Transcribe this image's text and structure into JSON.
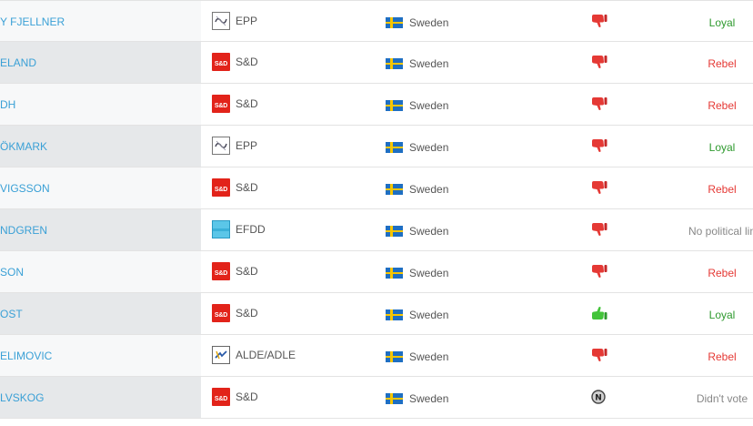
{
  "colors": {
    "link": "#3aa0d6",
    "loyal": "#2e9a2e",
    "rebel": "#e53935",
    "neutral": "#888888"
  },
  "rows": [
    {
      "name": "Y FJELLNER",
      "group": "EPP",
      "group_logo": "epp-logo",
      "country": "Sweden",
      "vote_icon": "thumbs-down-icon",
      "status": "Loyal",
      "status_kind": "loyal"
    },
    {
      "name": "ELAND",
      "group": "S&D",
      "group_logo": "sd-logo",
      "logo_text": "S&D",
      "country": "Sweden",
      "vote_icon": "thumbs-down-icon",
      "status": "Rebel",
      "status_kind": "rebel"
    },
    {
      "name": "DH",
      "group": "S&D",
      "group_logo": "sd-logo",
      "logo_text": "S&D",
      "country": "Sweden",
      "vote_icon": "thumbs-down-icon",
      "status": "Rebel",
      "status_kind": "rebel"
    },
    {
      "name": "ÖKMARK",
      "group": "EPP",
      "group_logo": "epp-logo",
      "country": "Sweden",
      "vote_icon": "thumbs-down-icon",
      "status": "Loyal",
      "status_kind": "loyal"
    },
    {
      "name": "VIGSSON",
      "group": "S&D",
      "group_logo": "sd-logo",
      "logo_text": "S&D",
      "country": "Sweden",
      "vote_icon": "thumbs-down-icon",
      "status": "Rebel",
      "status_kind": "rebel"
    },
    {
      "name": "NDGREN",
      "group": "EFDD",
      "group_logo": "efdd-logo",
      "country": "Sweden",
      "vote_icon": "thumbs-down-icon",
      "status": "No political lin",
      "status_kind": "none"
    },
    {
      "name": "SON",
      "group": "S&D",
      "group_logo": "sd-logo",
      "logo_text": "S&D",
      "country": "Sweden",
      "vote_icon": "thumbs-down-icon",
      "status": "Rebel",
      "status_kind": "rebel"
    },
    {
      "name": "OST",
      "group": "S&D",
      "group_logo": "sd-logo",
      "logo_text": "S&D",
      "country": "Sweden",
      "vote_icon": "thumbs-up-icon",
      "status": "Loyal",
      "status_kind": "loyal"
    },
    {
      "name": "ELIMOVIC",
      "group": "ALDE/ADLE",
      "group_logo": "alde-logo",
      "country": "Sweden",
      "vote_icon": "thumbs-down-icon",
      "status": "Rebel",
      "status_kind": "rebel"
    },
    {
      "name": "LVSKOG",
      "group": "S&D",
      "group_logo": "sd-logo",
      "logo_text": "S&D",
      "country": "Sweden",
      "vote_icon": "no-vote-icon",
      "status": "Didn't vote",
      "status_kind": "none"
    }
  ]
}
